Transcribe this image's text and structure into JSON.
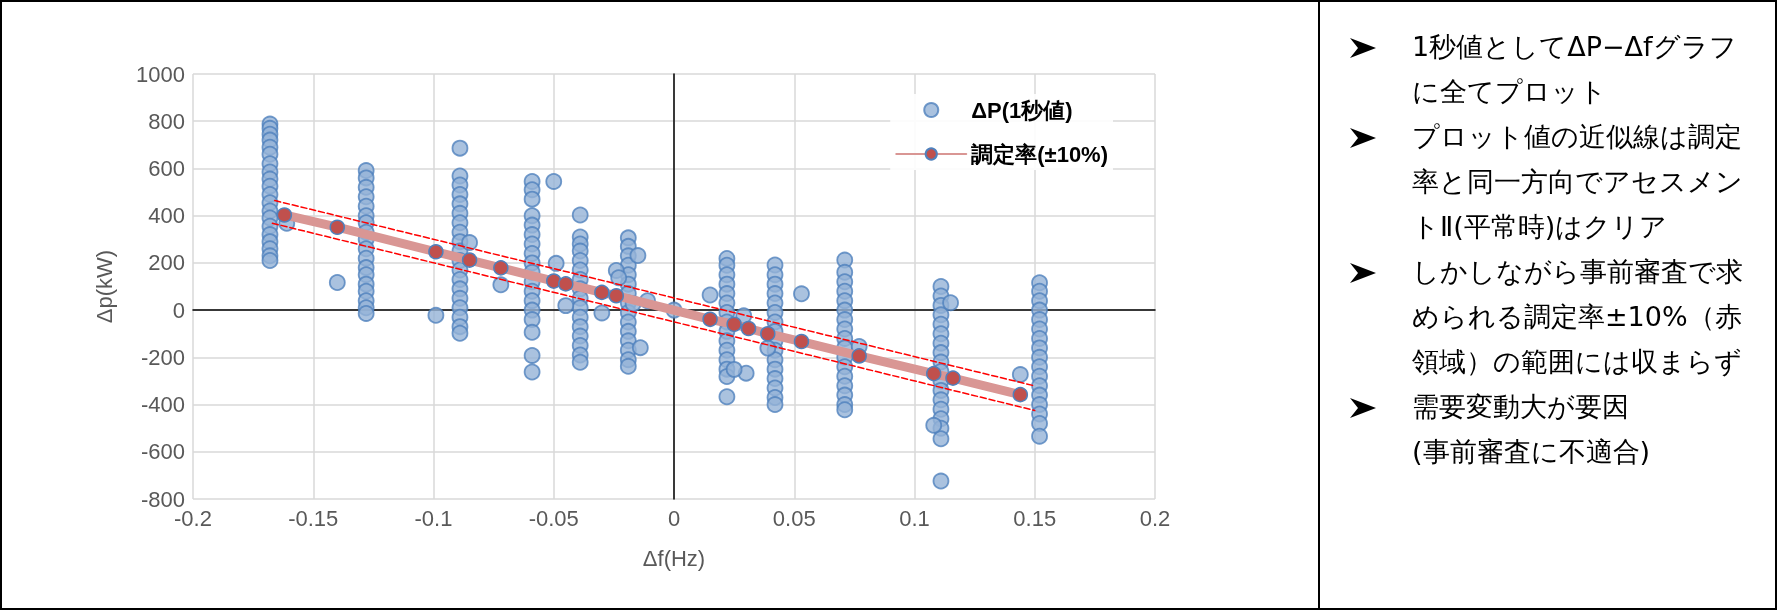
{
  "chart_data": [
    {
      "type": "scatter",
      "xlabel": "Δf(Hz)",
      "ylabel": "Δp(kW)",
      "xlim": [
        -0.2,
        0.2
      ],
      "ylim": [
        -800,
        1000
      ],
      "xticks": [
        -0.2,
        -0.15,
        -0.1,
        -0.05,
        0,
        0.05,
        0.1,
        0.15,
        0.2
      ],
      "yticks": [
        -800,
        -600,
        -400,
        -200,
        0,
        200,
        400,
        600,
        800,
        1000
      ],
      "grid": true,
      "legend": "top right",
      "marker": "circle",
      "series": [
        {
          "name": "ΔP(1秒値)",
          "type": "scatter",
          "color": "#95b3d7",
          "x": [
            -0.168,
            -0.168,
            -0.168,
            -0.168,
            -0.168,
            -0.168,
            -0.168,
            -0.168,
            -0.168,
            -0.168,
            -0.168,
            -0.168,
            -0.168,
            -0.168,
            -0.168,
            -0.168,
            -0.168,
            -0.168,
            -0.168,
            -0.168,
            -0.128,
            -0.128,
            -0.128,
            -0.128,
            -0.128,
            -0.128,
            -0.128,
            -0.128,
            -0.128,
            -0.128,
            -0.128,
            -0.128,
            -0.128,
            -0.128,
            -0.128,
            -0.128,
            -0.128,
            -0.128,
            -0.089,
            -0.089,
            -0.089,
            -0.089,
            -0.089,
            -0.089,
            -0.089,
            -0.089,
            -0.089,
            -0.089,
            -0.089,
            -0.089,
            -0.089,
            -0.089,
            -0.089,
            -0.089,
            -0.089,
            -0.089,
            -0.089,
            -0.059,
            -0.059,
            -0.059,
            -0.059,
            -0.059,
            -0.059,
            -0.059,
            -0.059,
            -0.059,
            -0.059,
            -0.059,
            -0.059,
            -0.059,
            -0.059,
            -0.059,
            -0.059,
            -0.059,
            -0.059,
            -0.039,
            -0.039,
            -0.039,
            -0.039,
            -0.039,
            -0.039,
            -0.039,
            -0.039,
            -0.039,
            -0.039,
            -0.039,
            -0.039,
            -0.039,
            -0.039,
            -0.039,
            -0.039,
            -0.019,
            -0.019,
            -0.019,
            -0.019,
            -0.019,
            -0.019,
            -0.019,
            -0.019,
            -0.019,
            -0.019,
            -0.019,
            -0.019,
            -0.019,
            -0.019,
            -0.019,
            0.022,
            0.022,
            0.022,
            0.022,
            0.022,
            0.022,
            0.022,
            0.022,
            0.022,
            0.022,
            0.022,
            0.022,
            0.022,
            0.022,
            0.022,
            0.042,
            0.042,
            0.042,
            0.042,
            0.042,
            0.042,
            0.042,
            0.042,
            0.042,
            0.042,
            0.042,
            0.042,
            0.042,
            0.042,
            0.042,
            0.042,
            0.071,
            0.071,
            0.071,
            0.071,
            0.071,
            0.071,
            0.071,
            0.071,
            0.071,
            0.071,
            0.071,
            0.071,
            0.071,
            0.071,
            0.071,
            0.071,
            0.071,
            0.111,
            0.111,
            0.111,
            0.111,
            0.111,
            0.111,
            0.111,
            0.111,
            0.111,
            0.111,
            0.111,
            0.111,
            0.111,
            0.111,
            0.111,
            0.111,
            0.111,
            0.111,
            0.152,
            0.152,
            0.152,
            0.152,
            0.152,
            0.152,
            0.152,
            0.152,
            0.152,
            0.152,
            0.152,
            0.152,
            0.152,
            0.152,
            0.152,
            0.152,
            0.152,
            -0.161,
            -0.14,
            -0.099,
            -0.085,
            -0.072,
            -0.05,
            -0.049,
            -0.045,
            -0.03,
            -0.024,
            -0.023,
            -0.015,
            -0.014,
            -0.011,
            -0.017,
            0,
            0.015,
            0.029,
            0.03,
            0.025,
            0.039,
            0.053,
            0.077,
            0.115,
            0.108,
            0.144
          ],
          "values": [
            788,
            770,
            745,
            720,
            690,
            660,
            620,
            585,
            555,
            525,
            490,
            455,
            420,
            390,
            355,
            320,
            290,
            260,
            230,
            210,
            591,
            560,
            520,
            480,
            440,
            400,
            370,
            330,
            300,
            260,
            220,
            180,
            150,
            110,
            80,
            40,
            10,
            -14,
            686,
            568,
            530,
            490,
            450,
            410,
            370,
            330,
            290,
            250,
            210,
            170,
            130,
            90,
            50,
            10,
            -30,
            -70,
            -98,
            545,
            510,
            470,
            400,
            360,
            320,
            280,
            240,
            200,
            160,
            120,
            80,
            40,
            0,
            -40,
            -94,
            -192,
            -262,
            403,
            310,
            280,
            250,
            210,
            170,
            130,
            90,
            50,
            10,
            -30,
            -70,
            -110,
            -150,
            -190,
            -221,
            306,
            270,
            230,
            190,
            150,
            110,
            70,
            30,
            -10,
            -50,
            -90,
            -130,
            -170,
            -210,
            -238,
            219,
            190,
            150,
            110,
            70,
            30,
            -10,
            -50,
            -90,
            -130,
            -170,
            -210,
            -250,
            -281,
            -367,
            191,
            150,
            110,
            70,
            30,
            -10,
            -50,
            -90,
            -130,
            -170,
            -210,
            -250,
            -290,
            -330,
            -370,
            -400,
            212,
            160,
            120,
            80,
            40,
            0,
            -40,
            -80,
            -120,
            -160,
            -200,
            -240,
            -280,
            -320,
            -360,
            -400,
            -422,
            100,
            60,
            20,
            -20,
            -60,
            -100,
            -140,
            -180,
            -220,
            -260,
            -300,
            -340,
            -380,
            -420,
            -460,
            -500,
            -545,
            -724,
            116,
            80,
            40,
            0,
            -40,
            -80,
            -120,
            -160,
            -200,
            -240,
            -280,
            -320,
            -360,
            -400,
            -440,
            -480,
            -534,
            368,
            117,
            -22,
            286,
            107,
            545,
            198,
            19,
            -12,
            168,
            137,
            231,
            -159,
            40,
            27,
            0,
            64,
            -24,
            -267,
            -251,
            -161,
            69,
            -154,
            31,
            -488,
            -273
          ]
        },
        {
          "name": "調定率(±10%)",
          "type": "line",
          "color": "#d99694",
          "line_style": "solid",
          "x": [
            -0.162,
            -0.14,
            -0.099,
            -0.085,
            -0.072,
            -0.05,
            -0.045,
            -0.03,
            -0.024,
            0.015,
            0.025,
            0.031,
            0.039,
            0.053,
            0.077,
            0.108,
            0.116,
            0.144
          ],
          "values": [
            403,
            351,
            247,
            212,
            179,
            123,
            111,
            75,
            61,
            -39,
            -60,
            -78,
            -100,
            -133,
            -194,
            -269,
            -288,
            -358
          ],
          "colors": [
            "#c0504d",
            "#c0504d",
            "#c0504d",
            "#c0504d",
            "#c0504d",
            "#c0504d",
            "#c0504d",
            "#c0504d",
            "#c0504d",
            "#c0504d",
            "#c0504d",
            "#c0504d",
            "#c0504d",
            "#c0504d",
            "#c0504d",
            "#c0504d",
            "#c0504d",
            "#c0504d"
          ]
        },
        {
          "type": "line",
          "color": "#ff0000",
          "line_style": "dashed",
          "marker": "none",
          "x": [
            -0.166,
            0.15
          ],
          "values": [
            464,
            -321
          ]
        },
        {
          "type": "line",
          "color": "#ff0000",
          "line_style": "dashed",
          "marker": "none",
          "x": [
            -0.167,
            0.15
          ],
          "values": [
            368,
            -425
          ]
        }
      ]
    },
    {
      "type": "other",
      "annotations": [
        "1秒値としてΔP−Δfグラフに全てプロット",
        "プロット値の近似線は調定率と同一方向でアセスメントⅡ(平常時)はクリア",
        "しかしながら事前審査で求められる調定率±10%（赤領域）の範囲には収まらず",
        "需要変動大が要因\n(事前審査に不適合)"
      ]
    }
  ]
}
